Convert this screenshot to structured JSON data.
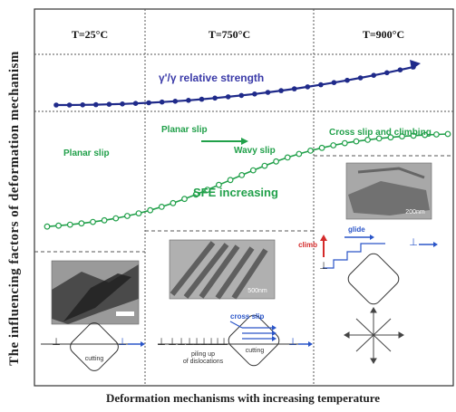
{
  "y_axis_label": "The influencing factors of deformation mechanism",
  "x_axis_label": "Deformation mechanisms  with increasing temperature",
  "columns": [
    "T=25°C",
    "T=750°C",
    "T=900°C"
  ],
  "strength_curve": {
    "label": "γ'/γ relative strength",
    "color": "#1f2a8a"
  },
  "sfe_curve": {
    "label": "SFE increasing",
    "color": "#21a04a"
  },
  "annotations": {
    "planar_slip_left": "Planar slip",
    "planar_slip_mid": "Planar slip",
    "wavy_slip": "Wavy slip",
    "cross_slip_climbing": "Cross slip and climbing",
    "cutting_1": "cutting",
    "cutting_2": "cutting",
    "cross_slip": "cross slip",
    "pile_up": "piling up\nof dislocations",
    "climb": "climb",
    "glide": "glide",
    "dislocation_symbol": "⊥"
  },
  "micrograph_scale_labels": [
    "200nm",
    "500nm"
  ],
  "colors": {
    "green": "#21a04a",
    "navy": "#1f2a8a",
    "blue": "#2a55c8",
    "red": "#d42a2a"
  }
}
